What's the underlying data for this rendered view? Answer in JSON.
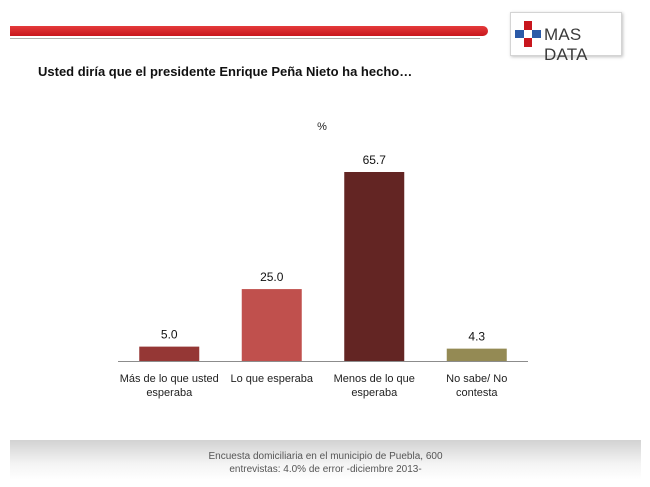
{
  "brand": {
    "logo_text": "MAS DATA",
    "accent_red": "#c8161d",
    "accent_blue": "#2b5aa8"
  },
  "header": {
    "question": "Usted diría que el presidente Enrique Peña Nieto ha hecho…"
  },
  "chart_data": {
    "type": "bar",
    "unit_label": "%",
    "categories": [
      [
        "Más de lo que usted",
        "esperaba"
      ],
      [
        "Lo que esperaba"
      ],
      [
        "Menos de lo que",
        "esperaba"
      ],
      [
        "No sabe/ No",
        "contesta"
      ]
    ],
    "values": [
      5.0,
      25.0,
      65.7,
      4.3
    ],
    "value_labels": [
      "5.0",
      "25.0",
      "65.7",
      "4.3"
    ],
    "colors": [
      "#953735",
      "#c0504d",
      "#632523",
      "#948a54"
    ],
    "ylim": [
      0,
      70
    ],
    "grid": false,
    "legend": "none"
  },
  "footer": {
    "line1": "Encuesta domiciliaria en el municipio de Puebla, 600",
    "line2": "entrevistas: 4.0% de error -diciembre 2013-"
  }
}
